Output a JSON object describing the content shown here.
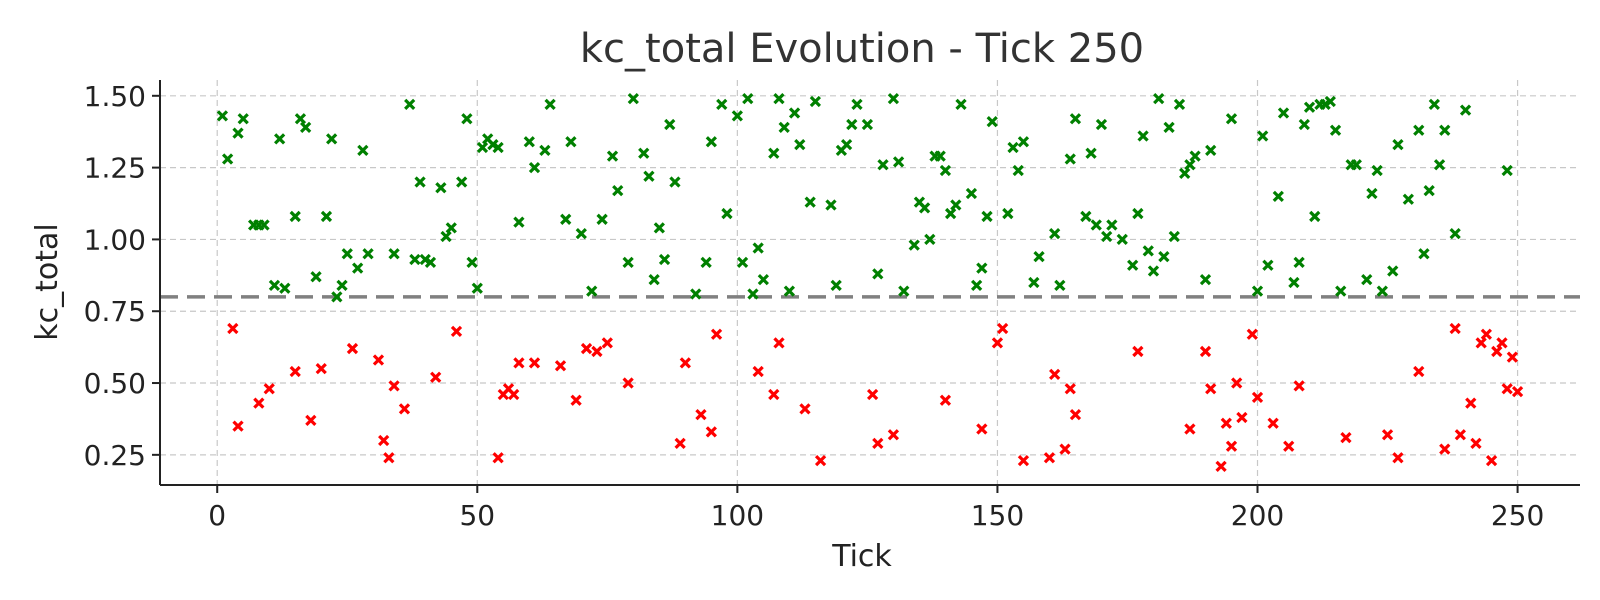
{
  "chart_data": {
    "type": "scatter",
    "title": "kc_total Evolution - Tick 250",
    "xlabel": "Tick",
    "ylabel": "kc_total",
    "xlim": [
      -11,
      262
    ],
    "ylim": [
      0.145,
      1.555
    ],
    "xticks": [
      0,
      50,
      100,
      150,
      200,
      250
    ],
    "xtick_labels": [
      "0",
      "50",
      "100",
      "150",
      "200",
      "250"
    ],
    "yticks": [
      0.25,
      0.5,
      0.75,
      1.0,
      1.25,
      1.5
    ],
    "ytick_labels": [
      "0.25",
      "0.50",
      "0.75",
      "1.00",
      "1.25",
      "1.50"
    ],
    "grid": true,
    "marker": "x",
    "threshold": 0.8,
    "colors": {
      "above": "#008000",
      "below": "#ff0000",
      "threshold": "#808080"
    },
    "series": [
      {
        "x": [
          1,
          2,
          4,
          5,
          7,
          8,
          9,
          11,
          12,
          13,
          15,
          16,
          17,
          19,
          21,
          22,
          23,
          24,
          25,
          27,
          28,
          29,
          34,
          37,
          38,
          39,
          40,
          41,
          43,
          44,
          45,
          47,
          48,
          49,
          50,
          51,
          52,
          53,
          54,
          58,
          60,
          61,
          63,
          64,
          67,
          68,
          70,
          72,
          74,
          76,
          77,
          79,
          80,
          82,
          83,
          84,
          85,
          86,
          87,
          88,
          92,
          94,
          95,
          97,
          98,
          100,
          101,
          102,
          103,
          104,
          105,
          107,
          108,
          109,
          110,
          111,
          112,
          114,
          115,
          118,
          119,
          120,
          121,
          122,
          123,
          125,
          127,
          128,
          130,
          131,
          132,
          134,
          135,
          136,
          137,
          138,
          139,
          140,
          141,
          142,
          143,
          145,
          146,
          147,
          148,
          149,
          152,
          153,
          154,
          155,
          157,
          158,
          161,
          162,
          164,
          165,
          167,
          168,
          169,
          170,
          171,
          172,
          174,
          176,
          177,
          178,
          179,
          180,
          181,
          182,
          183,
          184,
          185,
          186,
          187,
          188,
          190,
          191,
          195,
          200,
          201,
          202,
          204,
          205,
          207,
          208,
          209,
          210,
          211,
          212,
          213,
          214,
          215,
          216,
          218,
          219,
          221,
          222,
          223,
          224,
          226,
          227,
          229,
          231,
          232,
          233,
          234,
          235,
          236,
          238,
          240,
          248
        ],
        "y": [
          1.43,
          1.28,
          1.37,
          1.42,
          1.05,
          1.05,
          1.05,
          0.84,
          1.35,
          0.83,
          1.08,
          1.42,
          1.39,
          0.87,
          1.08,
          1.35,
          0.8,
          0.84,
          0.95,
          0.9,
          1.31,
          0.95,
          0.95,
          1.47,
          0.93,
          1.2,
          0.93,
          0.92,
          1.18,
          1.01,
          1.04,
          1.2,
          1.42,
          0.92,
          0.83,
          1.32,
          1.35,
          1.33,
          1.32,
          1.06,
          1.34,
          1.25,
          1.31,
          1.47,
          1.07,
          1.34,
          1.02,
          0.82,
          1.07,
          1.29,
          1.17,
          0.92,
          1.49,
          1.3,
          1.22,
          0.86,
          1.04,
          0.93,
          1.4,
          1.2,
          0.81,
          0.92,
          1.34,
          1.47,
          1.09,
          1.43,
          0.92,
          1.49,
          0.81,
          0.97,
          0.86,
          1.3,
          1.49,
          1.39,
          0.82,
          1.44,
          1.33,
          1.13,
          1.48,
          1.12,
          0.84,
          1.31,
          1.33,
          1.4,
          1.47,
          1.4,
          0.88,
          1.26,
          1.49,
          1.27,
          0.82,
          0.98,
          1.13,
          1.11,
          1.0,
          1.29,
          1.29,
          1.24,
          1.09,
          1.12,
          1.47,
          1.16,
          0.84,
          0.9,
          1.08,
          1.41,
          1.09,
          1.32,
          1.24,
          1.34,
          0.85,
          0.94,
          1.02,
          0.84,
          1.28,
          1.42,
          1.08,
          1.3,
          1.05,
          1.4,
          1.01,
          1.05,
          1.0,
          0.91,
          1.09,
          1.36,
          0.96,
          0.89,
          1.49,
          0.94,
          1.39,
          1.01,
          1.47,
          1.23,
          1.26,
          1.29,
          0.86,
          1.31,
          1.42,
          0.82,
          1.36,
          0.91,
          1.15,
          1.44,
          0.85,
          0.92,
          1.4,
          1.46,
          1.08,
          1.47,
          1.47,
          1.48,
          1.38,
          0.82,
          1.26,
          1.26,
          0.86,
          1.16,
          1.24,
          0.82,
          0.89,
          1.33,
          1.14,
          1.38,
          0.95,
          1.17,
          1.47,
          1.26,
          1.38,
          1.02,
          1.45,
          1.24
        ]
      },
      {
        "x": [
          3,
          4,
          8,
          10,
          15,
          18,
          20,
          26,
          31,
          32,
          33,
          34,
          36,
          42,
          46,
          54,
          55,
          56,
          57,
          58,
          61,
          66,
          69,
          71,
          73,
          75,
          79,
          89,
          90,
          93,
          95,
          96,
          104,
          107,
          108,
          113,
          116,
          126,
          127,
          130,
          140,
          147,
          150,
          151,
          155,
          160,
          161,
          163,
          164,
          165,
          177,
          187,
          190,
          191,
          193,
          194,
          195,
          196,
          197,
          199,
          200,
          203,
          206,
          208,
          217,
          225,
          227,
          231,
          236,
          238,
          239,
          241,
          242,
          243,
          244,
          245,
          246,
          247,
          248,
          249,
          250
        ],
        "y": [
          0.69,
          0.35,
          0.43,
          0.48,
          0.54,
          0.37,
          0.55,
          0.62,
          0.58,
          0.3,
          0.24,
          0.49,
          0.41,
          0.52,
          0.68,
          0.24,
          0.46,
          0.48,
          0.46,
          0.57,
          0.57,
          0.56,
          0.44,
          0.62,
          0.61,
          0.64,
          0.5,
          0.29,
          0.57,
          0.39,
          0.33,
          0.67,
          0.54,
          0.46,
          0.64,
          0.41,
          0.23,
          0.46,
          0.29,
          0.32,
          0.44,
          0.34,
          0.64,
          0.69,
          0.23,
          0.24,
          0.53,
          0.27,
          0.48,
          0.39,
          0.61,
          0.34,
          0.61,
          0.48,
          0.21,
          0.36,
          0.28,
          0.5,
          0.38,
          0.67,
          0.45,
          0.36,
          0.28,
          0.49,
          0.31,
          0.32,
          0.24,
          0.54,
          0.27,
          0.69,
          0.32,
          0.43,
          0.29,
          0.64,
          0.67,
          0.23,
          0.61,
          0.64,
          0.48,
          0.59,
          0.47
        ]
      }
    ]
  }
}
